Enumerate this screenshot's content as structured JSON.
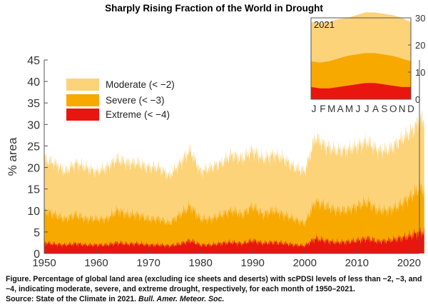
{
  "title": "Sharply Rising Fraction of the World in Drought",
  "chart_data": [
    {
      "type": "area",
      "stacking": "overlay",
      "xlabel": "",
      "ylabel": "% area",
      "xlim": [
        1950,
        2022
      ],
      "ylim": [
        0,
        45
      ],
      "xticks": [
        1950,
        1960,
        1970,
        1980,
        1990,
        2000,
        2010,
        2020
      ],
      "yticks": [
        0,
        5,
        10,
        15,
        20,
        25,
        30,
        35,
        40,
        45
      ],
      "legend_position": "top-left",
      "series": [
        {
          "name": "Moderate (< −2)",
          "color": "#fdd37a",
          "x": [
            1950,
            1952,
            1954,
            1956,
            1958,
            1960,
            1962,
            1964,
            1966,
            1968,
            1970,
            1972,
            1974,
            1976,
            1978,
            1980,
            1982,
            1984,
            1986,
            1988,
            1990,
            1992,
            1994,
            1996,
            1998,
            2000,
            2002,
            2004,
            2006,
            2008,
            2010,
            2012,
            2014,
            2016,
            2018,
            2020,
            2021,
            2022
          ],
          "values": [
            22,
            21,
            19,
            21,
            20,
            19,
            20,
            22,
            21,
            21,
            20,
            20,
            18,
            21,
            24,
            19,
            20,
            21,
            23,
            22,
            24,
            22,
            23,
            22,
            20,
            19,
            27,
            25,
            24,
            24,
            25,
            26,
            24,
            24,
            26,
            28,
            29,
            31
          ]
        },
        {
          "name": "Severe (< −3)",
          "color": "#f7a900",
          "x": [
            1950,
            1952,
            1954,
            1956,
            1958,
            1960,
            1962,
            1964,
            1966,
            1968,
            1970,
            1972,
            1974,
            1976,
            1978,
            1980,
            1982,
            1984,
            1986,
            1988,
            1990,
            1992,
            1994,
            1996,
            1998,
            2000,
            2002,
            2004,
            2006,
            2008,
            2010,
            2012,
            2014,
            2016,
            2018,
            2020,
            2021,
            2022
          ],
          "values": [
            10,
            9,
            8,
            9,
            8,
            8,
            8,
            10,
            9,
            9,
            8,
            8,
            7,
            9,
            11,
            8,
            8,
            9,
            10,
            9,
            11,
            9,
            10,
            9,
            8,
            7,
            12,
            11,
            10,
            10,
            11,
            12,
            10,
            10,
            11,
            13,
            14,
            15
          ]
        },
        {
          "name": "Extreme (< −4)",
          "color": "#e8160f",
          "x": [
            1950,
            1952,
            1954,
            1956,
            1958,
            1960,
            1962,
            1964,
            1966,
            1968,
            1970,
            1972,
            1974,
            1976,
            1978,
            1980,
            1982,
            1984,
            1986,
            1988,
            1990,
            1992,
            1994,
            1996,
            1998,
            2000,
            2002,
            2004,
            2006,
            2008,
            2010,
            2012,
            2014,
            2016,
            2018,
            2020,
            2021,
            2022
          ],
          "values": [
            2.5,
            2.2,
            2,
            2.3,
            2,
            2,
            2,
            2.5,
            2.2,
            2.3,
            2,
            2,
            1.8,
            2.2,
            3,
            2,
            2,
            2.4,
            2.6,
            2.3,
            3,
            2.4,
            2.6,
            2.4,
            2,
            1.8,
            3.5,
            3,
            2.6,
            2.7,
            3,
            3.5,
            2.8,
            3,
            3.5,
            4,
            4.5,
            5
          ]
        }
      ]
    },
    {
      "type": "area",
      "title": "2021",
      "stacking": "overlay",
      "categories": [
        "J",
        "F",
        "M",
        "A",
        "M",
        "J",
        "J",
        "A",
        "S",
        "O",
        "N",
        "D"
      ],
      "ylim": [
        0,
        30
      ],
      "yticks": [
        0,
        10,
        20,
        30
      ],
      "series": [
        {
          "name": "Moderate",
          "color": "#fdd37a",
          "values": [
            28.5,
            28,
            28.5,
            29.5,
            30,
            31,
            32,
            32,
            31.5,
            31,
            30,
            28.5
          ]
        },
        {
          "name": "Severe",
          "color": "#f7a900",
          "values": [
            14,
            13.5,
            14,
            15,
            16,
            16.5,
            17,
            17,
            16.5,
            16,
            15,
            14
          ]
        },
        {
          "name": "Extreme",
          "color": "#e8160f",
          "values": [
            4.5,
            4,
            4,
            4.5,
            5,
            5.5,
            6,
            6,
            5.5,
            5,
            4.5,
            4.5
          ]
        }
      ]
    }
  ],
  "caption": {
    "text": "Figure. Percentage of global land area (excluding ice sheets and deserts) with scPDSI levels of less than −2, −3, and −4, indicating moderate, severe, and extreme drought, respectively, for each month of 1950–2021.",
    "source_prefix": "Source: State of the Climate in 2021.",
    "source_journal": "Bull. Amer. Meteor. Soc."
  }
}
